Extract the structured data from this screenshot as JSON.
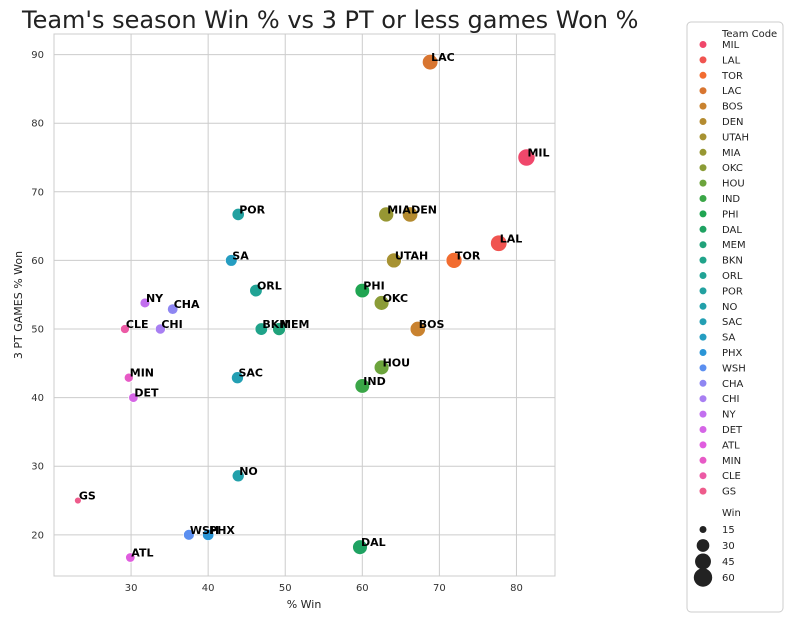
{
  "chart_data": {
    "type": "scatter",
    "title": "Team's season Win % vs 3 PT or less games Won %",
    "xlabel": "% Win",
    "ylabel": "3 PT GAMES % Won",
    "xlim": [
      20,
      85
    ],
    "ylim": [
      14,
      93
    ],
    "xticks": [
      "30",
      "40",
      "50",
      "60",
      "70",
      "80"
    ],
    "yticks": [
      "20",
      "30",
      "40",
      "50",
      "60",
      "70",
      "80",
      "90"
    ],
    "grid": true,
    "legend_position": "outside-right",
    "hue_legend_title": "Team Code",
    "size_legend_title": "Win",
    "size_legend": [
      {
        "label": "15",
        "value": 15
      },
      {
        "label": "30",
        "value": 30
      },
      {
        "label": "45",
        "value": 45
      },
      {
        "label": "60",
        "value": 60
      }
    ],
    "points": [
      {
        "team": "MIL",
        "x": 81.3,
        "y": 75.0,
        "win": 53,
        "color": "#f0476b"
      },
      {
        "team": "LAL",
        "x": 77.7,
        "y": 62.5,
        "win": 49,
        "color": "#f05450"
      },
      {
        "team": "TOR",
        "x": 71.9,
        "y": 60.0,
        "win": 46,
        "color": "#f26c30"
      },
      {
        "team": "LAC",
        "x": 68.8,
        "y": 88.9,
        "win": 44,
        "color": "#d87530"
      },
      {
        "team": "BOS",
        "x": 67.2,
        "y": 50.0,
        "win": 43,
        "color": "#c9822f"
      },
      {
        "team": "DEN",
        "x": 66.2,
        "y": 66.7,
        "win": 43,
        "color": "#b48b30"
      },
      {
        "team": "UTAH",
        "x": 64.1,
        "y": 60.0,
        "win": 41,
        "color": "#a79232"
      },
      {
        "team": "MIA",
        "x": 63.1,
        "y": 66.7,
        "win": 41,
        "color": "#979733"
      },
      {
        "team": "OKC",
        "x": 62.5,
        "y": 53.8,
        "win": 40,
        "color": "#8b9c37"
      },
      {
        "team": "HOU",
        "x": 62.5,
        "y": 44.4,
        "win": 40,
        "color": "#6ca43c"
      },
      {
        "team": "IND",
        "x": 60.0,
        "y": 41.7,
        "win": 39,
        "color": "#3aa647"
      },
      {
        "team": "PHI",
        "x": 60.0,
        "y": 55.6,
        "win": 39,
        "color": "#20a552"
      },
      {
        "team": "DAL",
        "x": 59.7,
        "y": 18.2,
        "win": 40,
        "color": "#1fa262"
      },
      {
        "team": "MEM",
        "x": 49.2,
        "y": 50.0,
        "win": 32,
        "color": "#20a27a"
      },
      {
        "team": "BKN",
        "x": 46.9,
        "y": 50.0,
        "win": 30,
        "color": "#20a38a"
      },
      {
        "team": "ORL",
        "x": 46.2,
        "y": 55.6,
        "win": 30,
        "color": "#21a395"
      },
      {
        "team": "POR",
        "x": 43.9,
        "y": 66.7,
        "win": 29,
        "color": "#22a1a0"
      },
      {
        "team": "NO",
        "x": 43.9,
        "y": 28.6,
        "win": 28,
        "color": "#22a0aa"
      },
      {
        "team": "SAC",
        "x": 43.8,
        "y": 42.9,
        "win": 28,
        "color": "#239fb3"
      },
      {
        "team": "SA",
        "x": 43.0,
        "y": 60.0,
        "win": 27,
        "color": "#259dc1"
      },
      {
        "team": "PHX",
        "x": 40.0,
        "y": 20.0,
        "win": 26,
        "color": "#2a95d6"
      },
      {
        "team": "WSH",
        "x": 37.5,
        "y": 20.0,
        "win": 24,
        "color": "#5b8ff0"
      },
      {
        "team": "CHA",
        "x": 35.4,
        "y": 52.9,
        "win": 23,
        "color": "#8e86f2"
      },
      {
        "team": "CHI",
        "x": 33.8,
        "y": 50.0,
        "win": 22,
        "color": "#a87ff2"
      },
      {
        "team": "NY",
        "x": 31.8,
        "y": 53.8,
        "win": 21,
        "color": "#c26fef"
      },
      {
        "team": "DET",
        "x": 30.3,
        "y": 40.0,
        "win": 20,
        "color": "#d565e6"
      },
      {
        "team": "ATL",
        "x": 29.9,
        "y": 16.7,
        "win": 20,
        "color": "#e05ddf"
      },
      {
        "team": "MIN",
        "x": 29.7,
        "y": 42.9,
        "win": 19,
        "color": "#e75ac6"
      },
      {
        "team": "CLE",
        "x": 29.2,
        "y": 50.0,
        "win": 19,
        "color": "#ec5aa5"
      },
      {
        "team": "GS",
        "x": 23.1,
        "y": 25.0,
        "win": 15,
        "color": "#ee5b8b"
      }
    ]
  }
}
